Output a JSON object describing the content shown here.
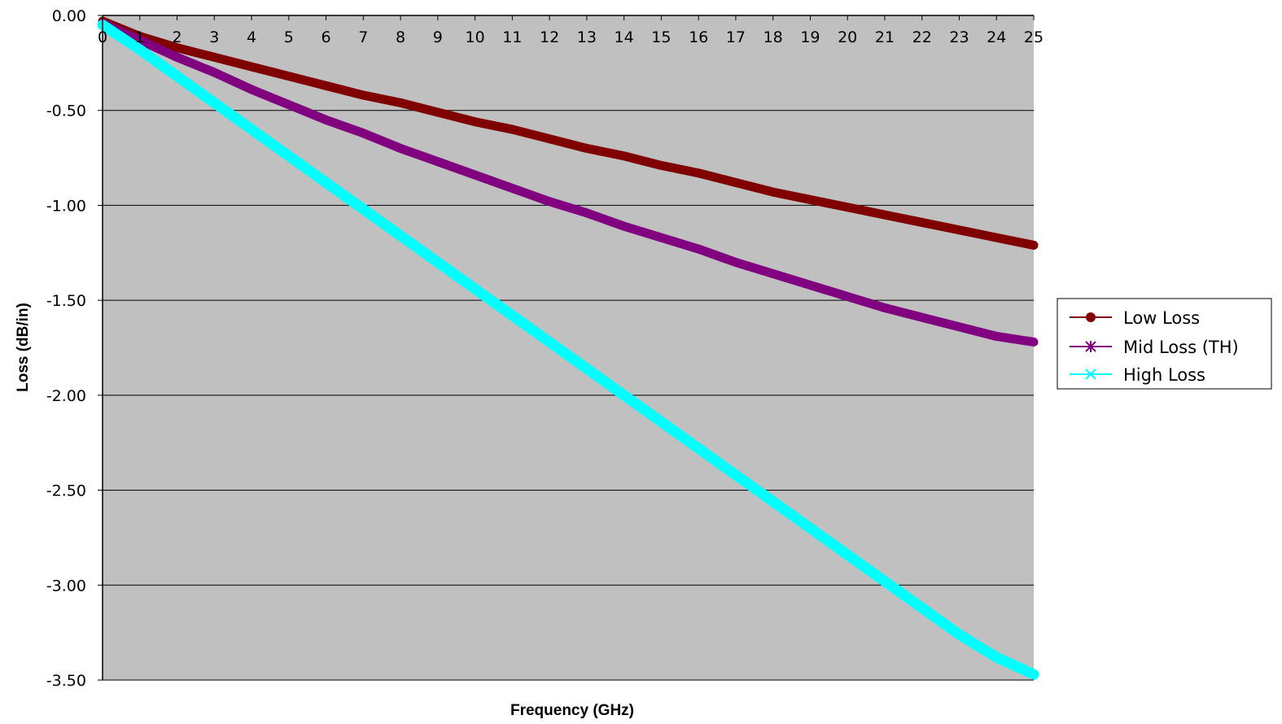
{
  "chart_data": {
    "type": "line",
    "title": "",
    "xlabel": "Frequency (GHz)",
    "ylabel": "Loss (dB/in)",
    "xlim": [
      0,
      25
    ],
    "ylim": [
      -3.5,
      0
    ],
    "x_ticks": [
      "0",
      "1",
      "2",
      "3",
      "4",
      "5",
      "6",
      "7",
      "8",
      "9",
      "10",
      "11",
      "12",
      "13",
      "14",
      "15",
      "16",
      "17",
      "18",
      "19",
      "20",
      "21",
      "22",
      "23",
      "24",
      "25"
    ],
    "y_ticks": [
      "0.00",
      "-0.50",
      "-1.00",
      "-1.50",
      "-2.00",
      "-2.50",
      "-3.00",
      "-3.50"
    ],
    "x_tick_values": [
      0,
      1,
      2,
      3,
      4,
      5,
      6,
      7,
      8,
      9,
      10,
      11,
      12,
      13,
      14,
      15,
      16,
      17,
      18,
      19,
      20,
      21,
      22,
      23,
      24,
      25
    ],
    "y_tick_values": [
      0,
      -0.5,
      -1,
      -1.5,
      -2,
      -2.5,
      -3,
      -3.5
    ],
    "grid": "horizontal",
    "plot_background": "#c0c0c0",
    "legend_position": "right",
    "x": [
      0,
      1,
      2,
      3,
      4,
      5,
      6,
      7,
      8,
      9,
      10,
      11,
      12,
      13,
      14,
      15,
      16,
      17,
      18,
      19,
      20,
      21,
      22,
      23,
      24,
      25
    ],
    "series": [
      {
        "name": "Low Loss",
        "color": "#800000",
        "marker": "circle",
        "values": [
          -0.03,
          -0.11,
          -0.17,
          -0.22,
          -0.27,
          -0.32,
          -0.37,
          -0.42,
          -0.46,
          -0.51,
          -0.56,
          -0.6,
          -0.65,
          -0.7,
          -0.74,
          -0.79,
          -0.83,
          -0.88,
          -0.93,
          -0.97,
          -1.01,
          -1.05,
          -1.09,
          -1.13,
          -1.17,
          -1.21
        ]
      },
      {
        "name": "Mid Loss (TH)",
        "color": "#800080",
        "marker": "asterisk",
        "values": [
          -0.04,
          -0.13,
          -0.22,
          -0.3,
          -0.39,
          -0.47,
          -0.55,
          -0.62,
          -0.7,
          -0.77,
          -0.84,
          -0.91,
          -0.98,
          -1.04,
          -1.11,
          -1.17,
          -1.23,
          -1.3,
          -1.36,
          -1.42,
          -1.48,
          -1.54,
          -1.59,
          -1.64,
          -1.69,
          -1.72
        ]
      },
      {
        "name": "High Loss",
        "color": "#00ffff",
        "marker": "x",
        "values": [
          -0.05,
          -0.18,
          -0.32,
          -0.46,
          -0.6,
          -0.74,
          -0.88,
          -1.02,
          -1.16,
          -1.3,
          -1.44,
          -1.58,
          -1.72,
          -1.86,
          -2.0,
          -2.14,
          -2.28,
          -2.42,
          -2.56,
          -2.7,
          -2.84,
          -2.98,
          -3.12,
          -3.26,
          -3.38,
          -3.47
        ]
      }
    ]
  }
}
